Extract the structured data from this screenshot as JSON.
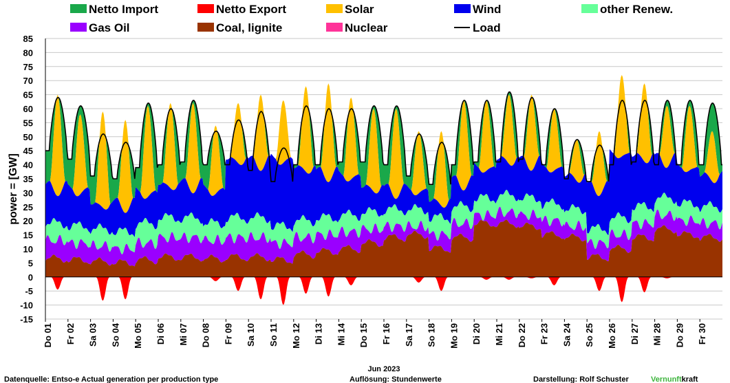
{
  "chart_data": {
    "type": "area",
    "ylabel": "power =  [GW]",
    "ylim": [
      -15,
      85
    ],
    "yticks": [
      85,
      80,
      75,
      70,
      65,
      60,
      55,
      50,
      45,
      40,
      35,
      30,
      25,
      20,
      15,
      10,
      5,
      0,
      -5,
      -10,
      -15
    ],
    "month_label": "Jun 2023",
    "day_labels": [
      "Do 01",
      "Fr 02",
      "Sa 03",
      "So 04",
      "Mo 05",
      "Di 06",
      "Mi 07",
      "Do 08",
      "Fr 09",
      "Sa 10",
      "So 11",
      "Mo 12",
      "Di 13",
      "Mi 14",
      "Do 15",
      "Fr 16",
      "Sa 17",
      "So 18",
      "Mo 19",
      "Di 20",
      "Mi 21",
      "Do 22",
      "Fr 23",
      "Sa 24",
      "So 25",
      "Mo 26",
      "Di 27",
      "Mi 28",
      "Do 29",
      "Fr 30"
    ],
    "legend": [
      {
        "name": "Netto Import",
        "color": "#1aa84a"
      },
      {
        "name": "Netto Export",
        "color": "#ff0000"
      },
      {
        "name": "Solar",
        "color": "#ffc000"
      },
      {
        "name": "Wind",
        "color": "#0000ee"
      },
      {
        "name": "other Renew.",
        "color": "#66ff99"
      },
      {
        "name": "Gas Oil",
        "color": "#9a00ff"
      },
      {
        "name": "Coal, lignite",
        "color": "#993300"
      },
      {
        "name": "Nuclear",
        "color": "#ff3399"
      },
      {
        "name": "Load",
        "color": "#000000"
      }
    ],
    "daily": {
      "coal": [
        6.5,
        6,
        5.5,
        5,
        6,
        7,
        7,
        6.5,
        7,
        7,
        6,
        8,
        9,
        10,
        12,
        14,
        15,
        10,
        14,
        19,
        19,
        18,
        15,
        14,
        7,
        10,
        14,
        17,
        15,
        14
      ],
      "gas": [
        13,
        12,
        11,
        10,
        12,
        14,
        14,
        13,
        14,
        14,
        12,
        14,
        15,
        16,
        17,
        18,
        18,
        15,
        19,
        22,
        23,
        22,
        20,
        18,
        12,
        15,
        19,
        22,
        20,
        19
      ],
      "renew": [
        19,
        18,
        17,
        16,
        19,
        21,
        21,
        19,
        21,
        21,
        18,
        20,
        21,
        22,
        23,
        24,
        24,
        21,
        25,
        28,
        29,
        28,
        26,
        24,
        17,
        21,
        25,
        28,
        26,
        25
      ],
      "wind": [
        33,
        32,
        27,
        27,
        31,
        34,
        34,
        32,
        43,
        42,
        43,
        40,
        38,
        37,
        33,
        32,
        32,
        28,
        35,
        40,
        43,
        42,
        40,
        37,
        33,
        45,
        44,
        43,
        40,
        37
      ],
      "solar_peak": [
        65,
        58,
        59,
        56,
        61,
        62,
        62,
        54,
        62,
        65,
        63,
        68,
        69,
        64,
        60,
        60,
        52,
        52,
        63,
        63,
        65,
        65,
        60,
        49,
        52,
        72,
        69,
        61,
        61,
        52
      ],
      "load_peak": [
        64,
        61,
        51,
        48,
        62,
        60,
        63,
        52,
        56,
        59,
        46,
        61,
        60,
        60,
        61,
        61,
        51,
        48,
        63,
        63,
        66,
        64,
        60,
        49,
        47,
        63,
        63,
        63,
        63,
        62
      ],
      "load_min": [
        45,
        42,
        36,
        35,
        39,
        40,
        41,
        40,
        40,
        38,
        34,
        40,
        40,
        41,
        41,
        40,
        36,
        33,
        40,
        41,
        41,
        42,
        40,
        35,
        34,
        40,
        41,
        40,
        40,
        40
      ],
      "export_min": [
        -4.5,
        0,
        -8.5,
        -8,
        0,
        0,
        0,
        -1.5,
        -5,
        -8,
        -10,
        -6,
        -7,
        -3,
        0,
        0,
        -2,
        -5,
        0,
        -1,
        -1,
        -0.5,
        -3,
        0,
        -5,
        -9,
        -5.5,
        -0.5,
        0,
        0
      ]
    },
    "footer": {
      "source": "Datenquelle: Entso-e  Actual generation per production type",
      "resolution": "Auflösung: Stundenwerte",
      "author": "Darstellung:  Rolf Schuster",
      "brand_green": "Vernunft",
      "brand_black": "kraft"
    }
  }
}
